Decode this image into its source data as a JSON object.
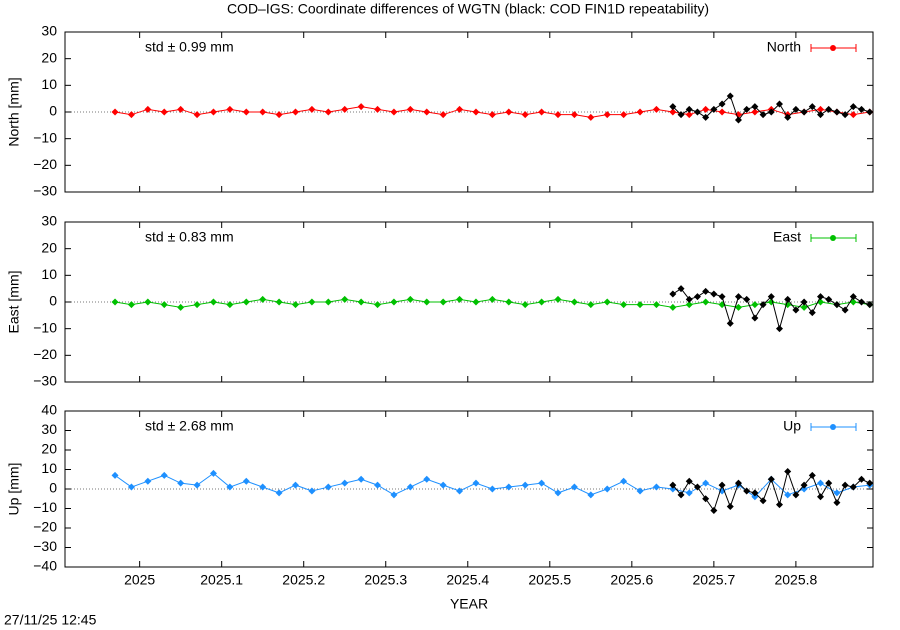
{
  "title": "COD–IGS: Coordinate differences of WGTN (black: COD FIN1D repeatability)",
  "timestamp": "27/11/25 12:45",
  "chart_data": [
    {
      "type": "line",
      "ylabel": "North [mm]",
      "annotation": "std ± 0.99 mm",
      "xlim": [
        2024.909,
        2025.894
      ],
      "xticks": [
        2025,
        2025.1,
        2025.2,
        2025.3,
        2025.4,
        2025.5,
        2025.6,
        2025.7,
        2025.8
      ],
      "ylim": [
        -30,
        30
      ],
      "yticks": [
        {
          "value": -30,
          "label": "−30"
        },
        {
          "value": -20,
          "label": "−20"
        },
        {
          "value": -10,
          "label": "−10"
        },
        0,
        10,
        20,
        30
      ],
      "legend": "upper right",
      "series": [
        {
          "name": "North",
          "color": "#ff0000",
          "x": [
            2024.97,
            2024.99,
            2025.01,
            2025.03,
            2025.05,
            2025.07,
            2025.09,
            2025.11,
            2025.13,
            2025.15,
            2025.17,
            2025.19,
            2025.21,
            2025.23,
            2025.25,
            2025.27,
            2025.29,
            2025.31,
            2025.33,
            2025.35,
            2025.37,
            2025.39,
            2025.41,
            2025.43,
            2025.45,
            2025.47,
            2025.49,
            2025.51,
            2025.53,
            2025.55,
            2025.57,
            2025.59,
            2025.61,
            2025.63,
            2025.65,
            2025.67,
            2025.69,
            2025.71,
            2025.73,
            2025.75,
            2025.77,
            2025.79,
            2025.81,
            2025.83,
            2025.85,
            2025.87,
            2025.89
          ],
          "values": [
            0,
            -1,
            1,
            0,
            1,
            -1,
            0,
            1,
            0,
            0,
            -1,
            0,
            1,
            0,
            1,
            2,
            1,
            0,
            1,
            0,
            -1,
            1,
            0,
            -1,
            0,
            -1,
            0,
            -1,
            -1,
            -2,
            -1,
            -1,
            0,
            1,
            0,
            -1,
            1,
            0,
            -1,
            0,
            1,
            -1,
            0,
            1,
            0,
            -1,
            0
          ]
        },
        {
          "color": "#000000",
          "x": [
            2025.65,
            2025.66,
            2025.67,
            2025.68,
            2025.69,
            2025.7,
            2025.71,
            2025.72,
            2025.73,
            2025.74,
            2025.75,
            2025.76,
            2025.77,
            2025.78,
            2025.79,
            2025.8,
            2025.81,
            2025.82,
            2025.83,
            2025.84,
            2025.85,
            2025.86,
            2025.87,
            2025.88,
            2025.89
          ],
          "values": [
            2,
            -1,
            1,
            0,
            -2,
            1,
            3,
            6,
            -3,
            1,
            2,
            -1,
            0,
            3,
            -2,
            1,
            0,
            2,
            -1,
            1,
            0,
            -1,
            2,
            1,
            0
          ]
        }
      ]
    },
    {
      "type": "line",
      "ylabel": "East [mm]",
      "annotation": "std ± 0.83 mm",
      "xlim": [
        2024.909,
        2025.894
      ],
      "xticks": [
        2025,
        2025.1,
        2025.2,
        2025.3,
        2025.4,
        2025.5,
        2025.6,
        2025.7,
        2025.8
      ],
      "ylim": [
        -30,
        30
      ],
      "yticks": [
        {
          "value": -30,
          "label": "−30"
        },
        {
          "value": -20,
          "label": "−20"
        },
        {
          "value": -10,
          "label": "−10"
        },
        0,
        10,
        20,
        30
      ],
      "legend": "upper right",
      "series": [
        {
          "name": "East",
          "color": "#00c000",
          "x": [
            2024.97,
            2024.99,
            2025.01,
            2025.03,
            2025.05,
            2025.07,
            2025.09,
            2025.11,
            2025.13,
            2025.15,
            2025.17,
            2025.19,
            2025.21,
            2025.23,
            2025.25,
            2025.27,
            2025.29,
            2025.31,
            2025.33,
            2025.35,
            2025.37,
            2025.39,
            2025.41,
            2025.43,
            2025.45,
            2025.47,
            2025.49,
            2025.51,
            2025.53,
            2025.55,
            2025.57,
            2025.59,
            2025.61,
            2025.63,
            2025.65,
            2025.67,
            2025.69,
            2025.71,
            2025.73,
            2025.75,
            2025.77,
            2025.79,
            2025.81,
            2025.83,
            2025.85,
            2025.87,
            2025.89
          ],
          "values": [
            0,
            -1,
            0,
            -1,
            -2,
            -1,
            0,
            -1,
            0,
            1,
            0,
            -1,
            0,
            0,
            1,
            0,
            -1,
            0,
            1,
            0,
            0,
            1,
            0,
            1,
            0,
            -1,
            0,
            1,
            0,
            -1,
            0,
            -1,
            -1,
            -1,
            -2,
            -1,
            0,
            -1,
            -2,
            -1,
            0,
            -1,
            -2,
            0,
            -1,
            0,
            -1
          ]
        },
        {
          "color": "#000000",
          "x": [
            2025.65,
            2025.66,
            2025.67,
            2025.68,
            2025.69,
            2025.7,
            2025.71,
            2025.72,
            2025.73,
            2025.74,
            2025.75,
            2025.76,
            2025.77,
            2025.78,
            2025.79,
            2025.8,
            2025.81,
            2025.82,
            2025.83,
            2025.84,
            2025.85,
            2025.86,
            2025.87,
            2025.88,
            2025.89
          ],
          "values": [
            3,
            5,
            1,
            2,
            4,
            3,
            2,
            -8,
            2,
            1,
            -6,
            -1,
            2,
            -10,
            1,
            -3,
            0,
            -4,
            2,
            1,
            -1,
            -3,
            2,
            0,
            -1
          ]
        }
      ]
    },
    {
      "type": "line",
      "ylabel": "Up [mm]",
      "xlabel": "YEAR",
      "annotation": "std ± 2.68 mm",
      "xlim": [
        2024.909,
        2025.894
      ],
      "xticks": [
        2025,
        2025.1,
        2025.2,
        2025.3,
        2025.4,
        2025.5,
        2025.6,
        2025.7,
        2025.8
      ],
      "ylim": [
        -40,
        40
      ],
      "yticks": [
        {
          "value": -40,
          "label": "−40"
        },
        {
          "value": -30,
          "label": "−30"
        },
        {
          "value": -20,
          "label": "−20"
        },
        {
          "value": -10,
          "label": "−10"
        },
        0,
        10,
        20,
        30,
        40
      ],
      "legend": "upper right",
      "series": [
        {
          "name": "Up",
          "color": "#1e90ff",
          "x": [
            2024.97,
            2024.99,
            2025.01,
            2025.03,
            2025.05,
            2025.07,
            2025.09,
            2025.11,
            2025.13,
            2025.15,
            2025.17,
            2025.19,
            2025.21,
            2025.23,
            2025.25,
            2025.27,
            2025.29,
            2025.31,
            2025.33,
            2025.35,
            2025.37,
            2025.39,
            2025.41,
            2025.43,
            2025.45,
            2025.47,
            2025.49,
            2025.51,
            2025.53,
            2025.55,
            2025.57,
            2025.59,
            2025.61,
            2025.63,
            2025.65,
            2025.67,
            2025.69,
            2025.71,
            2025.73,
            2025.75,
            2025.77,
            2025.79,
            2025.81,
            2025.83,
            2025.85,
            2025.87,
            2025.89
          ],
          "values": [
            7,
            1,
            4,
            7,
            3,
            2,
            8,
            1,
            4,
            1,
            -2,
            2,
            -1,
            1,
            3,
            5,
            2,
            -3,
            1,
            5,
            2,
            -1,
            3,
            0,
            1,
            2,
            3,
            -2,
            1,
            -3,
            0,
            4,
            -1,
            1,
            0,
            -2,
            3,
            -1,
            2,
            -4,
            5,
            -3,
            0,
            3,
            -2,
            1,
            2
          ]
        },
        {
          "color": "#000000",
          "x": [
            2025.65,
            2025.66,
            2025.67,
            2025.68,
            2025.69,
            2025.7,
            2025.71,
            2025.72,
            2025.73,
            2025.74,
            2025.75,
            2025.76,
            2025.77,
            2025.78,
            2025.79,
            2025.8,
            2025.81,
            2025.82,
            2025.83,
            2025.84,
            2025.85,
            2025.86,
            2025.87,
            2025.88,
            2025.89
          ],
          "values": [
            2,
            -3,
            4,
            1,
            -5,
            -11,
            2,
            -9,
            3,
            -1,
            -2,
            -6,
            5,
            -8,
            9,
            -3,
            2,
            7,
            -4,
            3,
            -7,
            2,
            1,
            5,
            3
          ]
        }
      ]
    }
  ]
}
